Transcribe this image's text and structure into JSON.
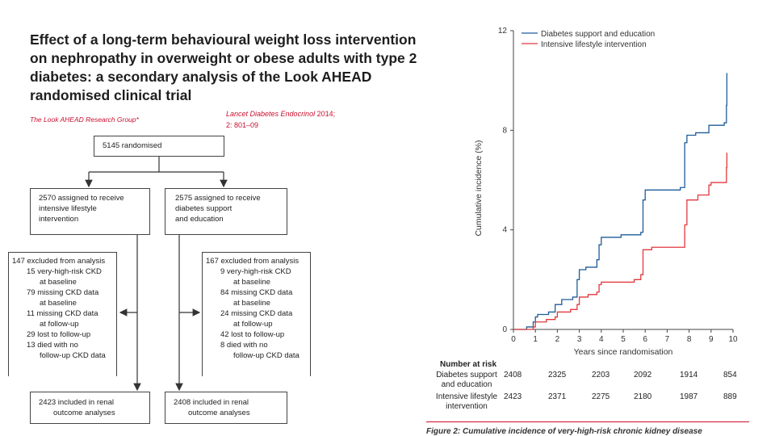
{
  "paper": {
    "title": "Effect of a long-term behavioural weight loss intervention on nephropathy in overweight or obese adults with type 2 diabetes: a secondary analysis of the Look AHEAD randomised clinical trial",
    "authors": "The Look AHEAD Research Group*",
    "citation_journal": "Lancet Diabetes Endocrinol",
    "citation_year": "2014;",
    "citation_pages": "2: 801–09",
    "accent_color": "#c8102e"
  },
  "flowchart": {
    "randomised": "5145 randomised",
    "ils_assigned": [
      "2570 assigned to receive",
      "intensive lifestyle",
      "intervention"
    ],
    "dse_assigned": [
      "2575 assigned to receive",
      "diabetes support",
      "and education"
    ],
    "ils_excluded": {
      "head": "147 excluded from analysis",
      "items": [
        "15 very-high-risk CKD",
        "at baseline",
        "79 missing CKD data",
        "at baseline",
        "11 missing CKD data",
        "at follow-up",
        "29 lost to follow-up",
        "13 died with no",
        "follow-up CKD data"
      ]
    },
    "dse_excluded": {
      "head": "167 excluded from analysis",
      "items": [
        "9 very-high-risk CKD",
        "at baseline",
        "84 missing CKD data",
        "at baseline",
        "24 missing CKD data",
        "at follow-up",
        "42 lost to follow-up",
        "8 died with no",
        "follow-up CKD data"
      ]
    },
    "ils_included": [
      "2423 included in renal",
      "outcome analyses"
    ],
    "dse_included": [
      "2408 included in renal",
      "outcome analyses"
    ]
  },
  "chart_data": {
    "type": "line",
    "xlabel": "Years since randomisation",
    "ylabel": "Cumulative incidence (%)",
    "xlim": [
      0,
      10
    ],
    "ylim": [
      0,
      12
    ],
    "xticks": [
      0,
      1,
      2,
      3,
      4,
      5,
      6,
      7,
      8,
      9,
      10
    ],
    "yticks": [
      0,
      4,
      8,
      12
    ],
    "legend": "top-left",
    "series": [
      {
        "name": "Diabetes support and education",
        "color": "#1f5c99",
        "x": [
          0,
          0.6,
          0.9,
          1.0,
          1.1,
          1.6,
          1.9,
          2.2,
          2.7,
          2.9,
          3.0,
          3.3,
          3.8,
          3.9,
          4.0,
          4.3,
          4.9,
          5.8,
          5.9,
          6.0,
          6.5,
          7.6,
          7.8,
          7.9,
          8.3,
          8.9,
          9.6,
          9.7,
          9.72
        ],
        "values": [
          0,
          0.1,
          0.3,
          0.5,
          0.6,
          0.7,
          1.0,
          1.2,
          1.3,
          2.0,
          2.4,
          2.5,
          2.8,
          3.4,
          3.7,
          3.7,
          3.8,
          3.9,
          5.2,
          5.6,
          5.6,
          5.7,
          7.5,
          7.8,
          7.9,
          8.2,
          8.3,
          9.0,
          10.3
        ]
      },
      {
        "name": "Intensive lifestyle intervention",
        "color": "#e0393e",
        "x": [
          0,
          0.9,
          1.0,
          1.5,
          1.9,
          2.0,
          2.6,
          2.9,
          3.0,
          3.4,
          3.8,
          3.9,
          4.0,
          4.5,
          5.5,
          5.8,
          5.9,
          6.3,
          7.5,
          7.8,
          7.9,
          8.4,
          8.9,
          9.0,
          9.6,
          9.7,
          9.72
        ],
        "values": [
          0,
          0.1,
          0.3,
          0.4,
          0.5,
          0.7,
          0.8,
          1.0,
          1.3,
          1.4,
          1.5,
          1.8,
          1.9,
          1.9,
          2.0,
          2.2,
          3.2,
          3.3,
          3.3,
          4.2,
          5.2,
          5.4,
          5.8,
          5.9,
          5.9,
          6.5,
          7.1
        ]
      }
    ]
  },
  "risk_table": {
    "header": "Number at risk",
    "rows": [
      {
        "label": [
          "Diabetes support",
          "and education"
        ],
        "values": [
          "2408",
          "2325",
          "2203",
          "2092",
          "1914",
          "854"
        ]
      },
      {
        "label": [
          "Intensive lifestyle",
          "intervention"
        ],
        "values": [
          "2423",
          "2371",
          "2275",
          "2180",
          "1987",
          "889"
        ]
      }
    ]
  },
  "figure_caption": "Figure 2: Cumulative incidence of very-high-risk chronic kidney disease"
}
